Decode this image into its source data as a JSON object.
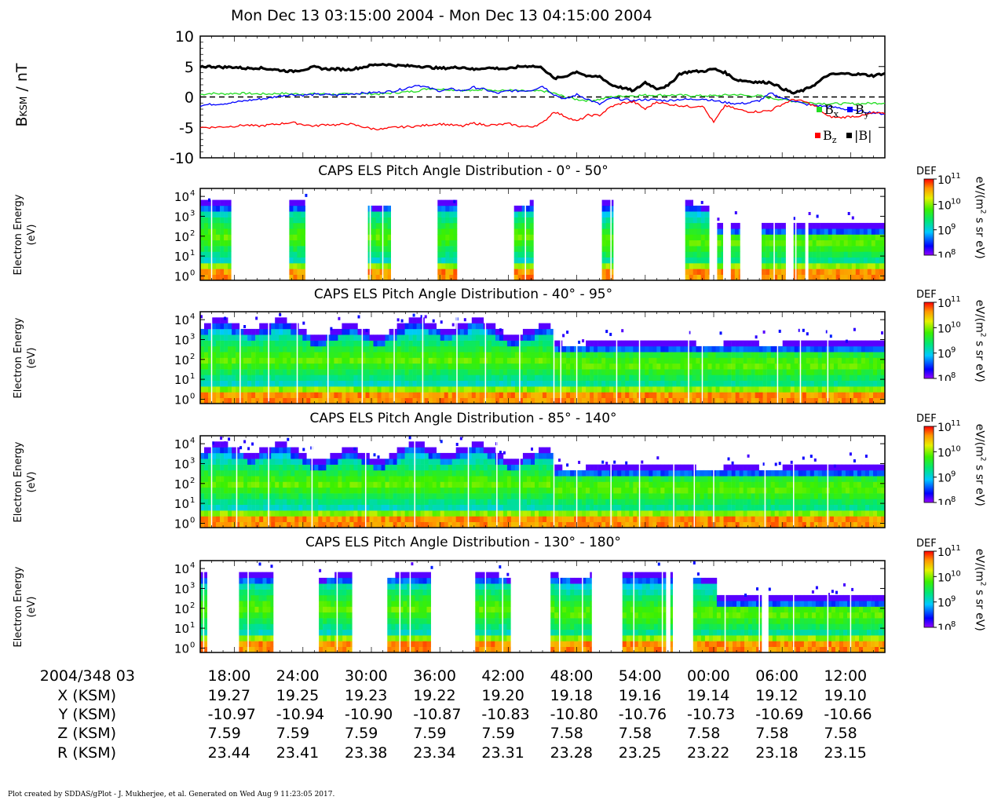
{
  "header": {
    "title": "Mon Dec 13 03:15:00 2004 - Mon Dec 13 04:15:00 2004"
  },
  "mag_panel": {
    "ylabel": "B_KSM / nT",
    "ylabel_main": "B",
    "ylabel_sub": "KSM",
    "ylabel_unit": " / nT",
    "yticks": [
      "10",
      "5",
      "0",
      "-5",
      "-10"
    ],
    "ylim": [
      -10,
      10
    ],
    "legend": [
      {
        "key": "x",
        "label": "B",
        "sub": "x",
        "color": "#22dd22"
      },
      {
        "key": "y",
        "label": "B",
        "sub": "y",
        "color": "#0000ff"
      },
      {
        "key": "z",
        "label": "B",
        "sub": "z",
        "color": "#ff0000"
      },
      {
        "key": "mag",
        "label": "|B|",
        "sub": "",
        "color": "#000000"
      }
    ]
  },
  "spec_panels": [
    {
      "title": "CAPS ELS Pitch Angle Distribution - 0° - 50°",
      "pattern": "sparse_a"
    },
    {
      "title": "CAPS ELS Pitch Angle Distribution - 40° - 95°",
      "pattern": "full_a"
    },
    {
      "title": "CAPS ELS Pitch Angle Distribution - 85° - 140°",
      "pattern": "full_b"
    },
    {
      "title": "CAPS ELS Pitch Angle Distribution - 130° - 180°",
      "pattern": "sparse_b"
    }
  ],
  "spec_axis": {
    "ylabel_line1": "Electron Energy",
    "ylabel_line2": "(eV)",
    "yticks": [
      "10",
      "10",
      "10",
      "10",
      "10"
    ],
    "yexp": [
      "4",
      "3",
      "2",
      "1",
      "0"
    ],
    "colorbar_title": "DEF",
    "colorbar_ticks": [
      "10",
      "10",
      "10",
      "10"
    ],
    "colorbar_exp": [
      "11",
      "10",
      "9",
      "8"
    ],
    "unit_main": "eV/(m",
    "unit_exp": "2",
    "unit_rest": " s sr eV)"
  },
  "colors": {
    "bx": "#22dd22",
    "by": "#0000ff",
    "bz": "#ff0000",
    "bmag": "#000000"
  },
  "ephemeris": {
    "date_label": "2004/348 03",
    "rows": [
      {
        "label": "X (KSM)",
        "values": [
          "19.27",
          "19.25",
          "19.23",
          "19.22",
          "19.20",
          "19.18",
          "19.16",
          "19.14",
          "19.12",
          "19.10"
        ]
      },
      {
        "label": "Y (KSM)",
        "values": [
          "-10.97",
          "-10.94",
          "-10.90",
          "-10.87",
          "-10.83",
          "-10.80",
          "-10.76",
          "-10.73",
          "-10.69",
          "-10.66"
        ]
      },
      {
        "label": "Z (KSM)",
        "values": [
          "7.59",
          "7.59",
          "7.59",
          "7.59",
          "7.59",
          "7.58",
          "7.58",
          "7.58",
          "7.58",
          "7.58"
        ]
      },
      {
        "label": "R (KSM)",
        "values": [
          "23.44",
          "23.41",
          "23.38",
          "23.34",
          "23.31",
          "23.28",
          "23.25",
          "23.22",
          "23.18",
          "23.15"
        ]
      }
    ],
    "times": [
      "18:00",
      "24:00",
      "30:00",
      "36:00",
      "42:00",
      "48:00",
      "54:00",
      "00:00",
      "06:00",
      "12:00"
    ]
  },
  "chart_data": [
    {
      "type": "line",
      "ylabel": "B_KSM / nT",
      "ylim": [
        -10,
        10
      ],
      "x_minutes": [
        0,
        1,
        2,
        3,
        4,
        5,
        6,
        7,
        8,
        9,
        10,
        11,
        12,
        13,
        14,
        15,
        16,
        17,
        18,
        19,
        20,
        21,
        22,
        23,
        24,
        25,
        26,
        27,
        28,
        29,
        30,
        31,
        32,
        33,
        34,
        35,
        36,
        37,
        38,
        39,
        40,
        41,
        42,
        43,
        44,
        45,
        46,
        47,
        48,
        49,
        50,
        51,
        52,
        53,
        54,
        55,
        56,
        57,
        58,
        59,
        60
      ],
      "series": [
        {
          "name": "Bx",
          "values": [
            0.4,
            0.6,
            0.5,
            0.6,
            0.6,
            0.5,
            0.5,
            0.6,
            0.5,
            0.5,
            0.5,
            0.5,
            0.4,
            0.5,
            0.6,
            0.5,
            0.5,
            0.7,
            0.8,
            1.0,
            1.4,
            1.3,
            1.2,
            1.1,
            1.0,
            1.4,
            1.0,
            1.1,
            1.0,
            0.9,
            1.0,
            0.6,
            0.0,
            -0.4,
            -0.6,
            -0.4,
            0.0,
            0.2,
            0.2,
            0.3,
            0.3,
            0.3,
            0.3,
            0.2,
            0.2,
            0.2,
            0.3,
            0.4,
            0.2,
            0.2,
            -0.2,
            -0.4,
            -0.7,
            -0.9,
            -1.0,
            -1.1,
            -1.1,
            -1.1,
            -1.1,
            -1.0,
            -1.0
          ]
        },
        {
          "name": "By",
          "values": [
            -1.4,
            -1.2,
            -1.1,
            -0.9,
            -0.6,
            -0.4,
            -0.2,
            0.2,
            0.4,
            0.3,
            0.4,
            0.4,
            0.3,
            0.5,
            0.6,
            0.7,
            0.8,
            1.0,
            1.4,
            2.0,
            1.5,
            1.0,
            1.3,
            1.0,
            1.6,
            1.2,
            0.6,
            1.0,
            1.0,
            1.1,
            1.8,
            0.4,
            -0.4,
            0.4,
            -0.4,
            -1.2,
            -0.2,
            -0.4,
            -0.6,
            -0.4,
            -0.5,
            -0.6,
            -0.4,
            -0.4,
            -0.3,
            -0.6,
            -0.9,
            -1.1,
            -1.0,
            -0.6,
            0.6,
            -0.2,
            -0.6,
            -1.2,
            -1.4,
            -1.6,
            -1.8,
            -2.2,
            -2.4,
            -2.6,
            -2.8
          ]
        },
        {
          "name": "Bz",
          "values": [
            -5.0,
            -5.0,
            -4.9,
            -4.8,
            -4.6,
            -4.8,
            -4.6,
            -4.4,
            -4.2,
            -4.5,
            -4.8,
            -4.5,
            -4.6,
            -4.4,
            -4.8,
            -5.2,
            -5.3,
            -5.0,
            -4.9,
            -4.8,
            -4.6,
            -4.4,
            -4.6,
            -4.8,
            -4.3,
            -4.6,
            -4.6,
            -4.4,
            -4.8,
            -4.9,
            -4.3,
            -2.4,
            -3.2,
            -4.0,
            -3.0,
            -3.0,
            -1.6,
            -1.0,
            -0.8,
            -2.0,
            -0.8,
            -1.2,
            -1.4,
            -1.6,
            -1.4,
            -4.2,
            -1.4,
            -2.0,
            -2.4,
            -2.4,
            -2.2,
            -1.2,
            -0.4,
            -0.8,
            -1.6,
            -3.2,
            -3.4,
            -3.2,
            -3.1,
            -2.6,
            -2.8
          ]
        },
        {
          "name": "|B|",
          "values": [
            5.0,
            5.0,
            4.9,
            4.9,
            4.7,
            4.8,
            4.6,
            4.4,
            4.2,
            4.5,
            4.9,
            4.6,
            4.6,
            4.5,
            4.8,
            5.2,
            5.4,
            5.2,
            5.1,
            5.1,
            4.9,
            4.7,
            4.8,
            4.9,
            4.5,
            4.8,
            4.7,
            4.6,
            5.0,
            5.1,
            4.8,
            3.0,
            3.4,
            4.2,
            3.3,
            3.4,
            2.0,
            1.5,
            1.0,
            2.4,
            1.4,
            1.8,
            3.8,
            4.2,
            4.2,
            4.6,
            4.0,
            2.8,
            2.6,
            2.4,
            2.4,
            1.4,
            0.6,
            1.2,
            2.2,
            3.6,
            3.8,
            3.8,
            3.7,
            3.5,
            3.9
          ]
        }
      ]
    },
    {
      "type": "heatmap",
      "title": "CAPS ELS Pitch Angle Distribution - 0° - 50°",
      "ylabel": "Electron Energy (eV)",
      "yscale": "log",
      "ylim": [
        0.6,
        25000
      ],
      "colorbar": {
        "label": "DEF",
        "unit": "eV/(m2 s sr eV)",
        "range": [
          100000000.0,
          100000000000.0
        ],
        "scale": "log"
      }
    },
    {
      "type": "heatmap",
      "title": "CAPS ELS Pitch Angle Distribution - 40° - 95°",
      "ylabel": "Electron Energy (eV)",
      "yscale": "log",
      "ylim": [
        0.6,
        25000
      ],
      "colorbar": {
        "label": "DEF",
        "unit": "eV/(m2 s sr eV)",
        "range": [
          100000000.0,
          100000000000.0
        ],
        "scale": "log"
      }
    },
    {
      "type": "heatmap",
      "title": "CAPS ELS Pitch Angle Distribution - 85° - 140°",
      "ylabel": "Electron Energy (eV)",
      "yscale": "log",
      "ylim": [
        0.6,
        25000
      ],
      "colorbar": {
        "label": "DEF",
        "unit": "eV/(m2 s sr eV)",
        "range": [
          100000000.0,
          100000000000.0
        ],
        "scale": "log"
      }
    },
    {
      "type": "heatmap",
      "title": "CAPS ELS Pitch Angle Distribution - 130° - 180°",
      "ylabel": "Electron Energy (eV)",
      "yscale": "log",
      "ylim": [
        0.6,
        25000
      ],
      "colorbar": {
        "label": "DEF",
        "unit": "eV/(m2 s sr eV)",
        "range": [
          100000000.0,
          100000000000.0
        ],
        "scale": "log"
      }
    }
  ],
  "footer": "Plot created by SDDAS/gPlot - J. Mukherjee, et al.  Generated on Wed Aug 9 11:23:05 2017."
}
